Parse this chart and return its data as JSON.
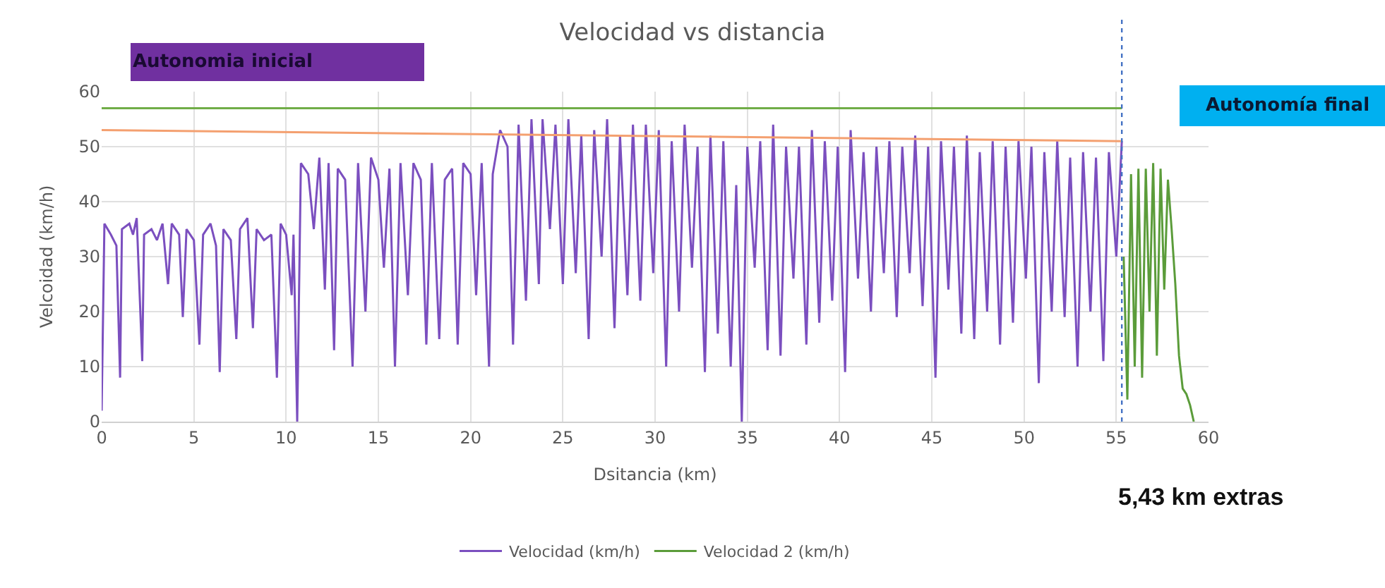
{
  "chart_data": {
    "type": "line",
    "title": "Velocidad vs distancia",
    "xlabel": "Dsitancia (km)",
    "ylabel": "Velcoidad (km/h)",
    "xlim": [
      0,
      60
    ],
    "xticks": [
      0,
      5,
      10,
      15,
      20,
      25,
      30,
      35,
      40,
      45,
      50,
      55,
      60
    ],
    "ylim": [
      0,
      60
    ],
    "yticks": [
      0,
      10,
      20,
      30,
      40,
      50,
      60
    ],
    "grid": true,
    "legend": "bottom",
    "marker": "none",
    "line_style": "solid",
    "series": [
      {
        "name": "Velocidad (km/h)",
        "color": "#7b4fbf",
        "x": [
          0,
          0.15,
          0.5,
          0.8,
          1.0,
          1.1,
          1.5,
          1.7,
          1.9,
          2.2,
          2.3,
          2.7,
          3.0,
          3.3,
          3.6,
          3.8,
          4.2,
          4.4,
          4.6,
          5.0,
          5.3,
          5.5,
          5.9,
          6.2,
          6.4,
          6.6,
          7.0,
          7.3,
          7.5,
          7.9,
          8.2,
          8.4,
          8.8,
          9.2,
          9.5,
          9.7,
          10.0,
          10.3,
          10.4,
          10.6,
          10.8,
          11.2,
          11.5,
          11.8,
          12.1,
          12.3,
          12.6,
          12.8,
          13.2,
          13.6,
          13.9,
          14.3,
          14.6,
          15.0,
          15.3,
          15.6,
          15.9,
          16.2,
          16.6,
          16.9,
          17.3,
          17.6,
          17.9,
          18.3,
          18.6,
          19.0,
          19.3,
          19.6,
          20.0,
          20.3,
          20.6,
          21.0,
          21.2,
          21.6,
          22.0,
          22.3,
          22.6,
          23.0,
          23.3,
          23.7,
          23.9,
          24.3,
          24.6,
          25.0,
          25.3,
          25.7,
          26.0,
          26.4,
          26.7,
          27.1,
          27.4,
          27.8,
          28.1,
          28.5,
          28.8,
          29.2,
          29.5,
          29.9,
          30.2,
          30.6,
          30.9,
          31.3,
          31.6,
          32.0,
          32.3,
          32.7,
          33.0,
          33.4,
          33.7,
          34.1,
          34.4,
          34.7,
          35.0,
          35.4,
          35.7,
          36.1,
          36.4,
          36.8,
          37.1,
          37.5,
          37.8,
          38.2,
          38.5,
          38.9,
          39.2,
          39.6,
          39.9,
          40.3,
          40.6,
          41.0,
          41.3,
          41.7,
          42.0,
          42.4,
          42.7,
          43.1,
          43.4,
          43.8,
          44.1,
          44.5,
          44.8,
          45.2,
          45.5,
          45.9,
          46.2,
          46.6,
          46.9,
          47.3,
          47.6,
          48.0,
          48.3,
          48.7,
          49.0,
          49.4,
          49.7,
          50.1,
          50.4,
          50.8,
          51.1,
          51.5,
          51.8,
          52.2,
          52.5,
          52.9,
          53.2,
          53.6,
          53.9,
          54.3,
          54.6,
          55.0,
          55.3
        ],
        "values": [
          2,
          36,
          34,
          32,
          8,
          35,
          36,
          34,
          37,
          11,
          34,
          35,
          33,
          36,
          25,
          36,
          34,
          19,
          35,
          33,
          14,
          34,
          36,
          32,
          9,
          35,
          33,
          15,
          35,
          37,
          17,
          35,
          33,
          34,
          8,
          36,
          34,
          23,
          34,
          0,
          47,
          45,
          35,
          48,
          24,
          47,
          13,
          46,
          44,
          10,
          47,
          20,
          48,
          44,
          28,
          46,
          10,
          47,
          23,
          47,
          44,
          14,
          47,
          15,
          44,
          46,
          14,
          47,
          45,
          23,
          47,
          10,
          45,
          53,
          50,
          14,
          54,
          22,
          55,
          25,
          55,
          35,
          54,
          25,
          55,
          27,
          52,
          15,
          53,
          30,
          55,
          17,
          52,
          23,
          54,
          22,
          54,
          27,
          53,
          10,
          51,
          20,
          54,
          28,
          50,
          9,
          52,
          16,
          51,
          10,
          43,
          0,
          50,
          28,
          51,
          13,
          54,
          12,
          50,
          26,
          50,
          14,
          53,
          18,
          51,
          22,
          50,
          9,
          53,
          26,
          49,
          20,
          50,
          27,
          51,
          19,
          50,
          27,
          52,
          21,
          50,
          8,
          51,
          24,
          50,
          16,
          52,
          15,
          49,
          20,
          51,
          14,
          50,
          18,
          51,
          26,
          50,
          7,
          49,
          20,
          51,
          19,
          48,
          10,
          49,
          20,
          48,
          11,
          49,
          30,
          51
        ]
      },
      {
        "name": "Velocidad 2 (km/h)",
        "color": "#5b9c3a",
        "x": [
          55.4,
          55.6,
          55.8,
          56.0,
          56.2,
          56.4,
          56.6,
          56.8,
          57.0,
          57.2,
          57.4,
          57.6,
          57.8,
          58.0,
          58.2,
          58.4,
          58.6,
          58.8,
          59.0,
          59.2
        ],
        "values": [
          30,
          4,
          45,
          10,
          46,
          8,
          46,
          20,
          47,
          12,
          46,
          24,
          44,
          35,
          25,
          12,
          6,
          5,
          3,
          0
        ]
      },
      {
        "color": "#f4a070",
        "x": [
          0,
          55.3
        ],
        "values": [
          53,
          51
        ]
      },
      {
        "color": "#70ad47",
        "x": [
          0,
          55.3
        ],
        "values": [
          57,
          57
        ]
      }
    ],
    "ref_lines": [
      {
        "axis": "x",
        "value": 55.3,
        "color": "#4472c4",
        "line_style": "dotted"
      }
    ],
    "annotations": [
      "Autonomia inicial",
      "Autonomía final",
      "5,43 km extras"
    ]
  }
}
